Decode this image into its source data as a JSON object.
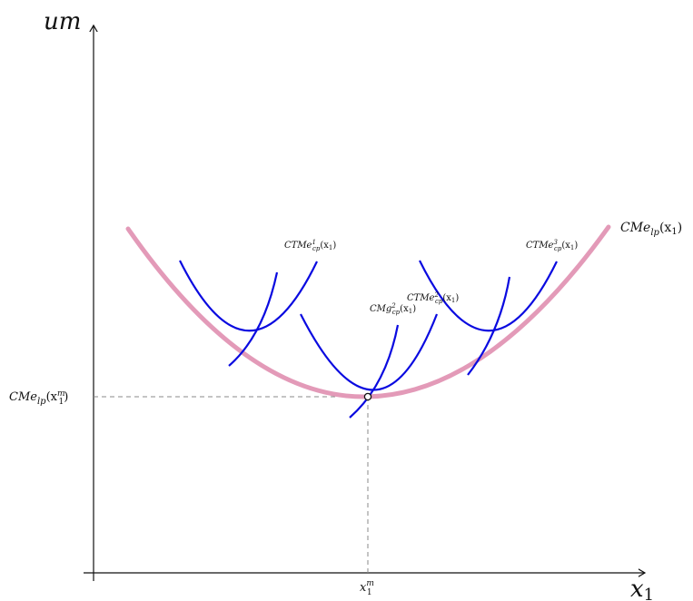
{
  "axes": {
    "y_label": "um",
    "x_label": "x",
    "x_label_sub": "1"
  },
  "curves": {
    "long_run": {
      "label": "CMe",
      "label_sub": "lp",
      "label_arg": "(x",
      "label_arg_sub": "1",
      "label_close": ")",
      "color": "#e39ab8"
    },
    "short_run_color": "#0a0ae0",
    "ctme1": {
      "label": "CTMe",
      "sup": "1",
      "sub": "cp",
      "arg": "(x",
      "arg_sub": "1",
      "close": ")"
    },
    "ctme2": {
      "label": "CTMe",
      "sup": "2",
      "sub": "cp",
      "arg": "(x",
      "arg_sub": "1",
      "close": ")"
    },
    "ctme3": {
      "label": "CTMe",
      "sup": "3",
      "sub": "cp",
      "arg": "(x",
      "arg_sub": "1",
      "close": ")"
    },
    "cmg2": {
      "label": "CMg",
      "sup": "2",
      "sub": "cp",
      "arg": "(x",
      "arg_sub": "1",
      "close": ")"
    }
  },
  "min_point": {
    "y_label": "CMe",
    "y_label_sub": "lp",
    "y_label_arg": "(x",
    "y_label_arg_sub": "1",
    "y_label_arg_sup": "m",
    "y_label_close": ")",
    "x_label": "x",
    "x_label_sup": "m",
    "x_label_sub": "1"
  }
}
